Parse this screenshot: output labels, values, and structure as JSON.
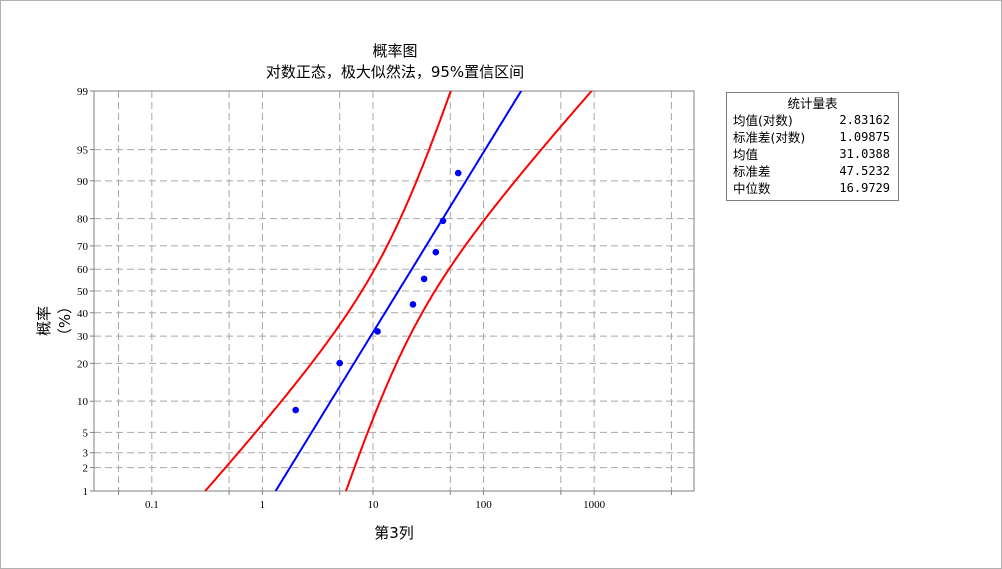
{
  "chart_data": {
    "type": "scatter",
    "title": "概率图",
    "subtitle": "对数正态，极大似然法，95%置信区间",
    "xlabel": "第3列",
    "ylabel": "概率（%）",
    "x_scale": "log",
    "y_scale": "normal-probability",
    "xlim": [
      0.03,
      8000
    ],
    "ylim": [
      1,
      99
    ],
    "x_ticks": [
      0.1,
      1,
      10,
      100,
      1000
    ],
    "x_tick_labels": [
      "0.1",
      "1",
      "10",
      "100",
      "1000"
    ],
    "x_grid": [
      0.05,
      0.1,
      0.5,
      1,
      5,
      10,
      50,
      100,
      500,
      1000,
      5000
    ],
    "y_ticks": [
      1,
      2,
      3,
      5,
      10,
      20,
      30,
      40,
      50,
      60,
      70,
      80,
      90,
      95,
      99
    ],
    "y_tick_labels": [
      "1",
      "2",
      "3",
      "5",
      "10",
      "20",
      "30",
      "40",
      "50",
      "60",
      "70",
      "80",
      "90",
      "95",
      "99"
    ],
    "grid": true,
    "points": [
      {
        "x": 2.0,
        "y": 8.3
      },
      {
        "x": 5.0,
        "y": 20.1
      },
      {
        "x": 11.0,
        "y": 31.9
      },
      {
        "x": 23.0,
        "y": 43.8
      },
      {
        "x": 29.0,
        "y": 55.6
      },
      {
        "x": 37.0,
        "y": 67.4
      },
      {
        "x": 43.0,
        "y": 79.3
      },
      {
        "x": 59.0,
        "y": 91.5
      }
    ],
    "fit": {
      "mu": 2.83162,
      "sigma": 1.09875
    },
    "ci_level": 0.95,
    "n": 8,
    "colors": {
      "points": "#0000ff",
      "fit_line": "#0000ff",
      "ci_lines": "#ff0000",
      "grid": "#a8a8a8"
    }
  },
  "stats_box": {
    "title": "统计量表",
    "rows": [
      {
        "label": "均值(对数)",
        "value": "2.83162"
      },
      {
        "label": "标准差(对数)",
        "value": "1.09875"
      },
      {
        "label": "均值",
        "value": "31.0388"
      },
      {
        "label": "标准差",
        "value": "47.5232"
      },
      {
        "label": "中位数",
        "value": "16.9729"
      }
    ]
  }
}
